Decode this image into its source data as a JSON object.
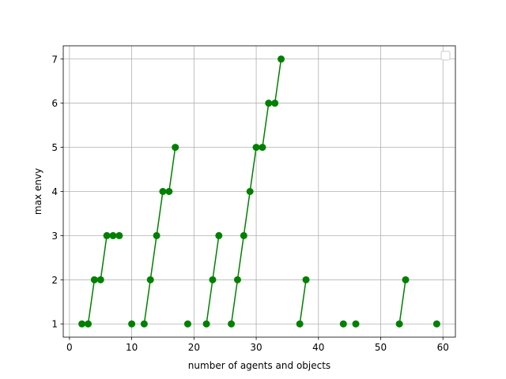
{
  "chart_data": {
    "type": "line",
    "xlabel": "number of agents and objects",
    "ylabel": "max envy",
    "xlim": [
      -1,
      62
    ],
    "ylim": [
      0.7,
      7.3
    ],
    "xticks": [
      0,
      10,
      20,
      30,
      40,
      50,
      60
    ],
    "yticks": [
      1,
      2,
      3,
      4,
      5,
      6,
      7
    ],
    "grid": true,
    "legend": "upper-right, empty",
    "color": "#008000",
    "segments": [
      [
        [
          2,
          1
        ],
        [
          3,
          1
        ],
        [
          4,
          2
        ],
        [
          5,
          2
        ],
        [
          6,
          3
        ],
        [
          7,
          3
        ],
        [
          8,
          3
        ]
      ],
      [
        [
          10,
          1
        ]
      ],
      [
        [
          12,
          1
        ],
        [
          13,
          2
        ],
        [
          14,
          3
        ],
        [
          15,
          4
        ],
        [
          16,
          4
        ],
        [
          17,
          5
        ]
      ],
      [
        [
          19,
          1
        ]
      ],
      [
        [
          22,
          1
        ],
        [
          23,
          2
        ],
        [
          24,
          3
        ]
      ],
      [
        [
          26,
          1
        ],
        [
          27,
          2
        ],
        [
          28,
          3
        ],
        [
          29,
          4
        ],
        [
          30,
          5
        ],
        [
          31,
          5
        ],
        [
          32,
          6
        ],
        [
          33,
          6
        ],
        [
          34,
          7
        ]
      ],
      [
        [
          37,
          1
        ],
        [
          38,
          2
        ]
      ],
      [
        [
          44,
          1
        ]
      ],
      [
        [
          46,
          1
        ]
      ],
      [
        [
          53,
          1
        ],
        [
          54,
          2
        ]
      ],
      [
        [
          59,
          1
        ]
      ]
    ]
  }
}
